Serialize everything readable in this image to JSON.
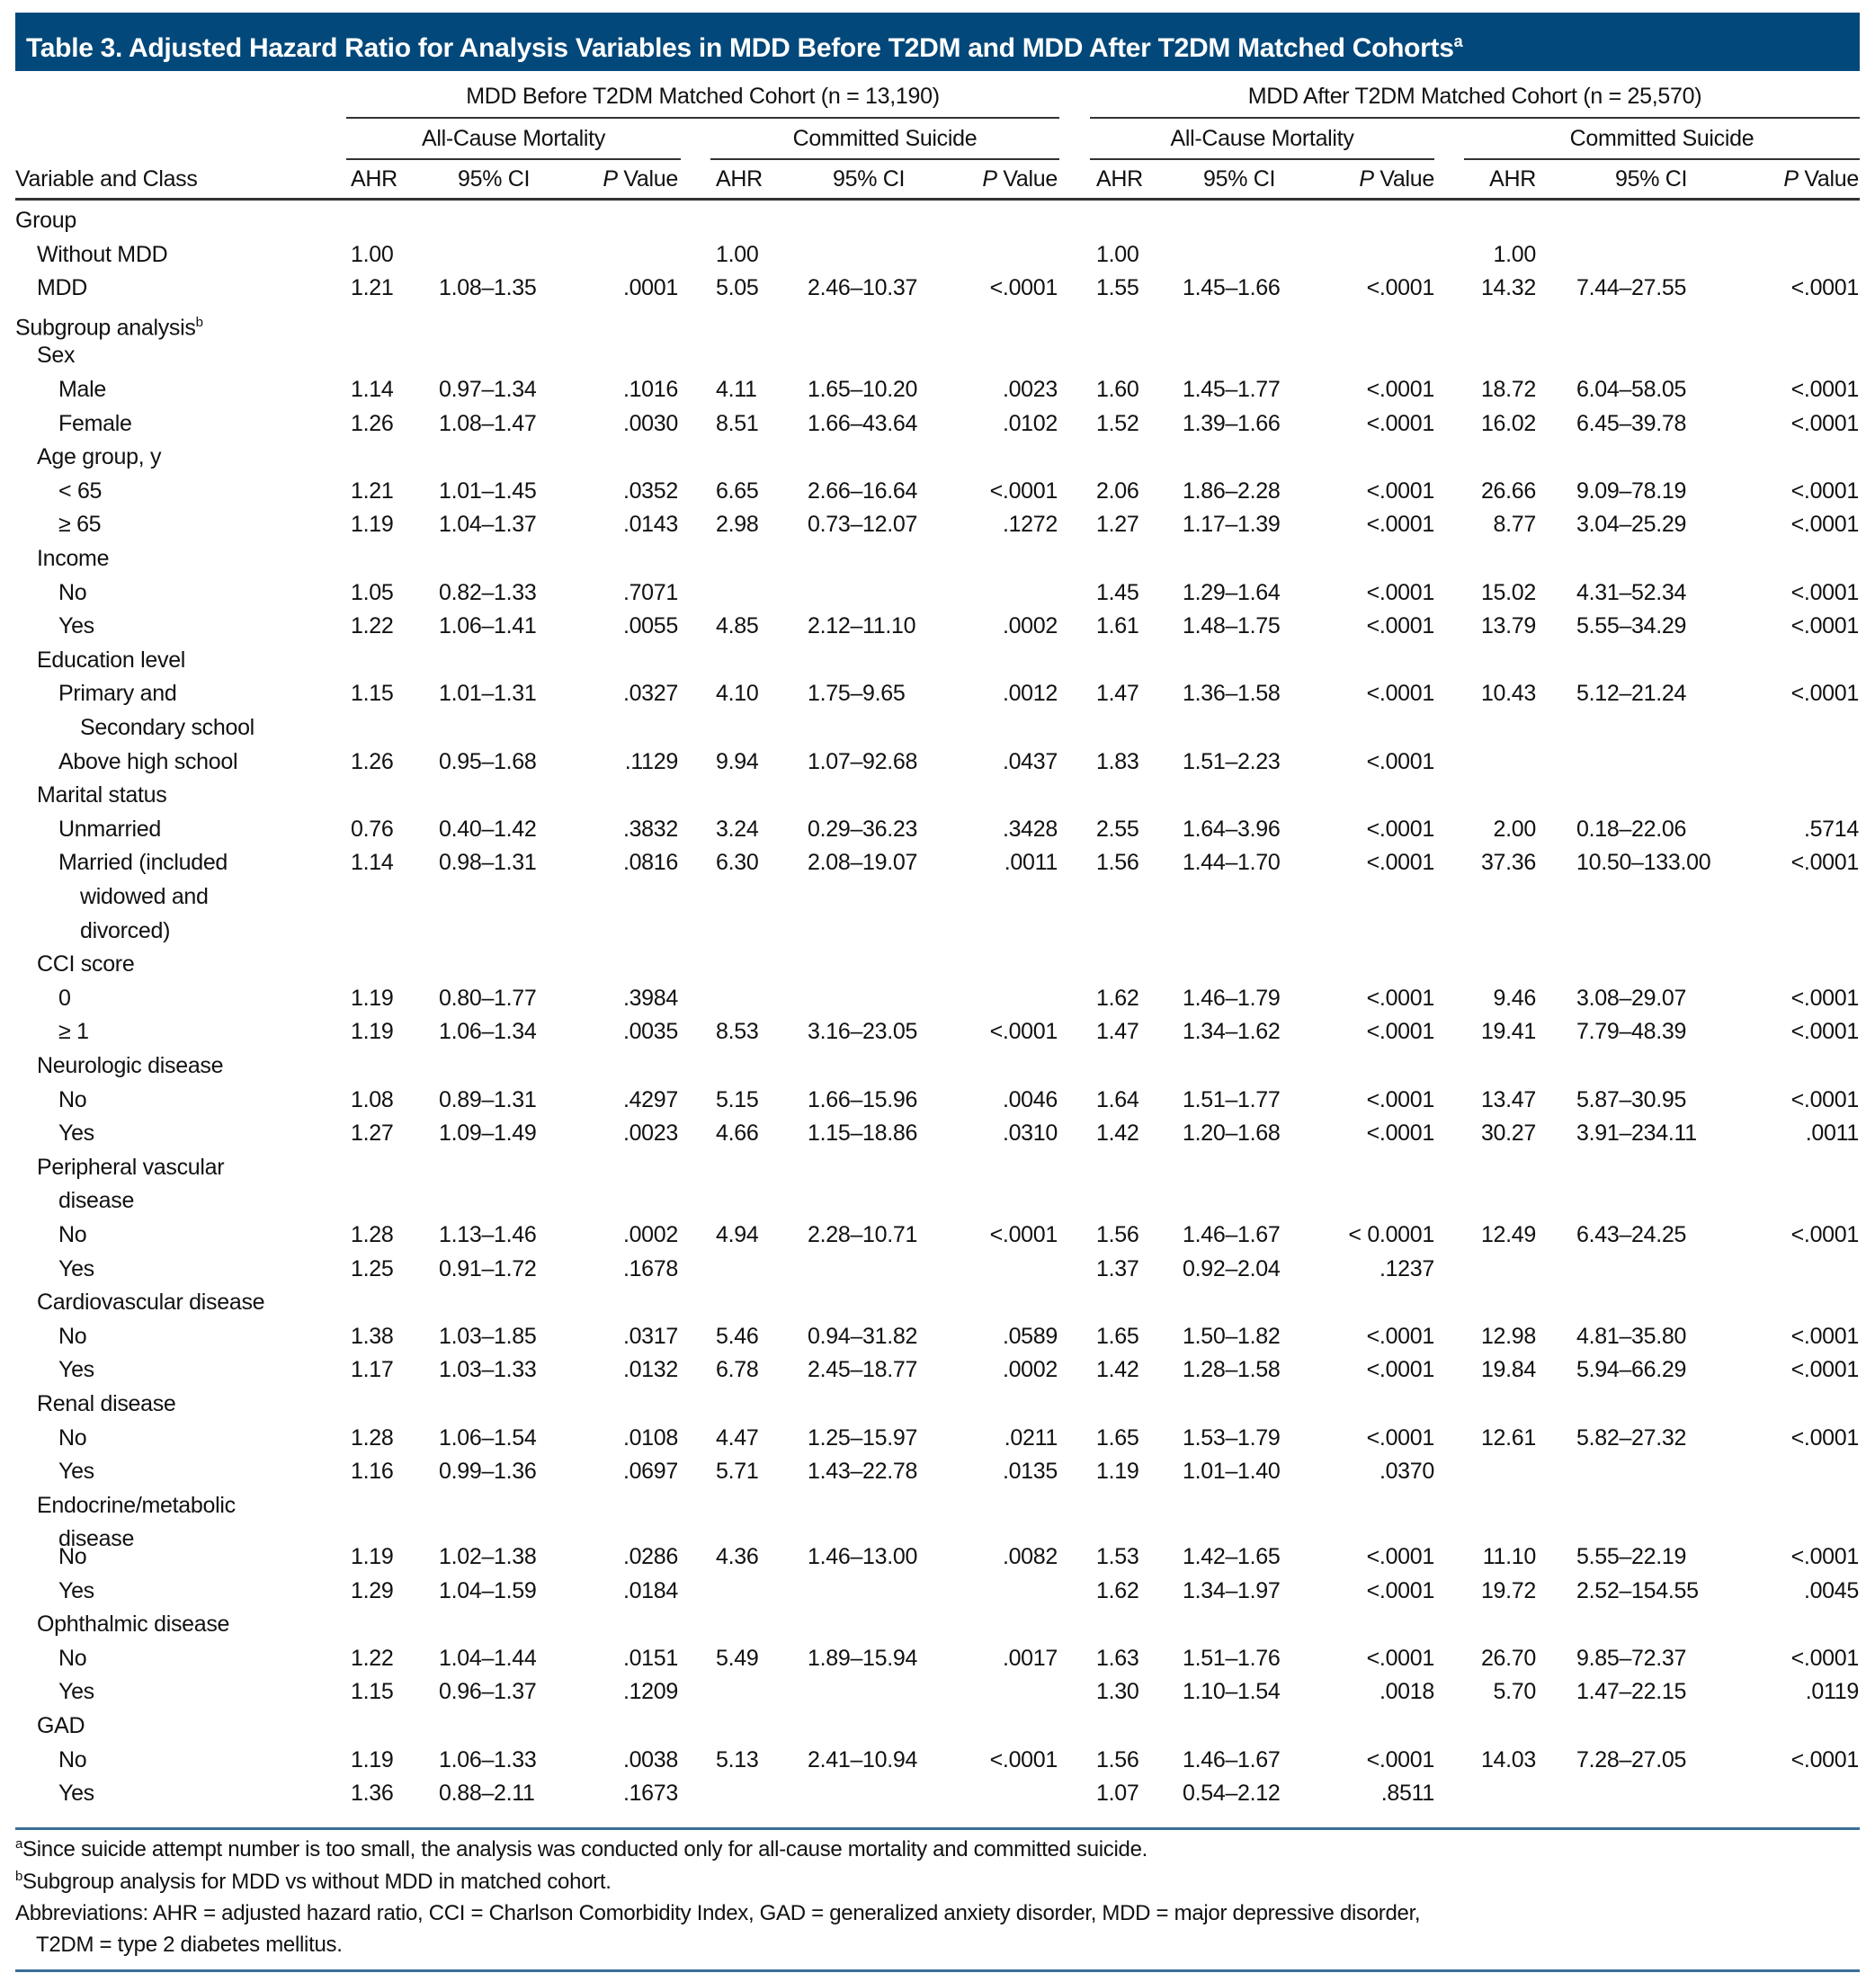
{
  "title": "Table 3. Adjusted Hazard Ratio for Analysis Variables in MDD Before T2DM and MDD After T2DM Matched Cohorts",
  "title_sup": "a",
  "colors": {
    "title_bg": "#02487a",
    "rule": "#3b6e98"
  },
  "header": {
    "cohorts": [
      "MDD Before T2DM Matched Cohort (n = 13,190)",
      "MDD After T2DM Matched Cohort (n = 25,570)"
    ],
    "outcomes": [
      "All-Cause Mortality",
      "Committed Suicide",
      "All-Cause Mortality",
      "Committed Suicide"
    ],
    "variable_label": "Variable and Class",
    "ahr": "AHR",
    "ci": "95% CI",
    "p_italic": "P",
    "p_rest": " Value"
  },
  "rows": [
    {
      "label": [
        "Group"
      ],
      "indent": 0,
      "cells": [
        "",
        "",
        "",
        "",
        "",
        "",
        "",
        "",
        "",
        "",
        "",
        ""
      ]
    },
    {
      "label": [
        "Without MDD"
      ],
      "indent": 1,
      "cells": [
        "1.00",
        "",
        "",
        "1.00",
        "",
        "",
        "1.00",
        "",
        "",
        "1.00",
        "",
        ""
      ]
    },
    {
      "label": [
        "MDD"
      ],
      "indent": 1,
      "cells": [
        "1.21",
        "1.08–1.35",
        ".0001",
        "5.05",
        "2.46–10.37",
        "<.0001",
        "1.55",
        "1.45–1.66",
        "<.0001",
        "14.32",
        "7.44–27.55",
        "<.0001"
      ]
    },
    {
      "label": [
        "Subgroup analysis"
      ],
      "sup": "b",
      "indent": 0,
      "cells": [
        "",
        "",
        "",
        "",
        "",
        "",
        "",
        "",
        "",
        "",
        "",
        ""
      ]
    },
    {
      "label": [
        "Sex"
      ],
      "indent": 1,
      "cells": [
        "",
        "",
        "",
        "",
        "",
        "",
        "",
        "",
        "",
        "",
        "",
        ""
      ]
    },
    {
      "label": [
        "Male"
      ],
      "indent": 2,
      "cells": [
        "1.14",
        "0.97–1.34",
        ".1016",
        "4.11",
        "1.65–10.20",
        ".0023",
        "1.60",
        "1.45–1.77",
        "<.0001",
        "18.72",
        "6.04–58.05",
        "<.0001"
      ]
    },
    {
      "label": [
        "Female"
      ],
      "indent": 2,
      "cells": [
        "1.26",
        "1.08–1.47",
        ".0030",
        "8.51",
        "1.66–43.64",
        ".0102",
        "1.52",
        "1.39–1.66",
        "<.0001",
        "16.02",
        "6.45–39.78",
        "<.0001"
      ]
    },
    {
      "label": [
        "Age group, y"
      ],
      "indent": 1,
      "cells": [
        "",
        "",
        "",
        "",
        "",
        "",
        "",
        "",
        "",
        "",
        "",
        ""
      ]
    },
    {
      "label": [
        "< 65"
      ],
      "indent": 2,
      "cells": [
        "1.21",
        "1.01–1.45",
        ".0352",
        "6.65",
        "2.66–16.64",
        "<.0001",
        "2.06",
        "1.86–2.28",
        "<.0001",
        "26.66",
        "9.09–78.19",
        "<.0001"
      ]
    },
    {
      "label": [
        "≥ 65"
      ],
      "indent": 2,
      "cells": [
        "1.19",
        "1.04–1.37",
        ".0143",
        "2.98",
        "0.73–12.07",
        ".1272",
        "1.27",
        "1.17–1.39",
        "<.0001",
        "8.77",
        "3.04–25.29",
        "<.0001"
      ]
    },
    {
      "label": [
        "Income"
      ],
      "indent": 1,
      "cells": [
        "",
        "",
        "",
        "",
        "",
        "",
        "",
        "",
        "",
        "",
        "",
        ""
      ]
    },
    {
      "label": [
        "No"
      ],
      "indent": 2,
      "cells": [
        "1.05",
        "0.82–1.33",
        ".7071",
        "",
        "",
        "",
        "1.45",
        "1.29–1.64",
        "<.0001",
        "15.02",
        "4.31–52.34",
        "<.0001"
      ]
    },
    {
      "label": [
        "Yes"
      ],
      "indent": 2,
      "cells": [
        "1.22",
        "1.06–1.41",
        ".0055",
        "4.85",
        "2.12–11.10",
        ".0002",
        "1.61",
        "1.48–1.75",
        "<.0001",
        "13.79",
        "5.55–34.29",
        "<.0001"
      ]
    },
    {
      "label": [
        "Education level"
      ],
      "indent": 1,
      "cells": [
        "",
        "",
        "",
        "",
        "",
        "",
        "",
        "",
        "",
        "",
        "",
        ""
      ]
    },
    {
      "label": [
        "Primary and",
        "Secondary school"
      ],
      "indent": 2,
      "cells": [
        "1.15",
        "1.01–1.31",
        ".0327",
        "4.10",
        "1.75–9.65",
        ".0012",
        "1.47",
        "1.36–1.58",
        "<.0001",
        "10.43",
        "5.12–21.24",
        "<.0001"
      ]
    },
    {
      "label": [
        "Above high school"
      ],
      "indent": 2,
      "cells": [
        "1.26",
        "0.95–1.68",
        ".1129",
        "9.94",
        "1.07–92.68",
        ".0437",
        "1.83",
        "1.51–2.23",
        "<.0001",
        "",
        "",
        ""
      ]
    },
    {
      "label": [
        "Marital status"
      ],
      "indent": 1,
      "cells": [
        "",
        "",
        "",
        "",
        "",
        "",
        "",
        "",
        "",
        "",
        "",
        ""
      ]
    },
    {
      "label": [
        "Unmarried"
      ],
      "indent": 2,
      "cells": [
        "0.76",
        "0.40–1.42",
        ".3832",
        "3.24",
        "0.29–36.23",
        ".3428",
        "2.55",
        "1.64–3.96",
        "<.0001",
        "2.00",
        "0.18–22.06",
        ".5714"
      ]
    },
    {
      "label": [
        "Married (included",
        "widowed and",
        "divorced)"
      ],
      "indent": 2,
      "cells": [
        "1.14",
        "0.98–1.31",
        ".0816",
        "6.30",
        "2.08–19.07",
        ".0011",
        "1.56",
        "1.44–1.70",
        "<.0001",
        "37.36",
        "10.50–133.00",
        "<.0001"
      ]
    },
    {
      "label": [
        "CCI score"
      ],
      "indent": 1,
      "cells": [
        "",
        "",
        "",
        "",
        "",
        "",
        "",
        "",
        "",
        "",
        "",
        ""
      ]
    },
    {
      "label": [
        "0"
      ],
      "indent": 2,
      "cells": [
        "1.19",
        "0.80–1.77",
        ".3984",
        "",
        "",
        "",
        "1.62",
        "1.46–1.79",
        "<.0001",
        "9.46",
        "3.08–29.07",
        "<.0001"
      ]
    },
    {
      "label": [
        "≥ 1"
      ],
      "indent": 2,
      "cells": [
        "1.19",
        "1.06–1.34",
        ".0035",
        "8.53",
        "3.16–23.05",
        "<.0001",
        "1.47",
        "1.34–1.62",
        "<.0001",
        "19.41",
        "7.79–48.39",
        "<.0001"
      ]
    },
    {
      "label": [
        "Neurologic disease"
      ],
      "indent": 1,
      "cells": [
        "",
        "",
        "",
        "",
        "",
        "",
        "",
        "",
        "",
        "",
        "",
        ""
      ]
    },
    {
      "label": [
        "No"
      ],
      "indent": 2,
      "cells": [
        "1.08",
        "0.89–1.31",
        ".4297",
        "5.15",
        "1.66–15.96",
        ".0046",
        "1.64",
        "1.51–1.77",
        "<.0001",
        "13.47",
        "5.87–30.95",
        "<.0001"
      ]
    },
    {
      "label": [
        "Yes"
      ],
      "indent": 2,
      "cells": [
        "1.27",
        "1.09–1.49",
        ".0023",
        "4.66",
        "1.15–18.86",
        ".0310",
        "1.42",
        "1.20–1.68",
        "<.0001",
        "30.27",
        "3.91–234.11",
        ".0011"
      ]
    },
    {
      "label": [
        "Peripheral vascular",
        "disease"
      ],
      "indent": 1,
      "cells": [
        "",
        "",
        "",
        "",
        "",
        "",
        "",
        "",
        "",
        "",
        "",
        ""
      ]
    },
    {
      "label": [
        "No"
      ],
      "indent": 2,
      "cells": [
        "1.28",
        "1.13–1.46",
        ".0002",
        "4.94",
        "2.28–10.71",
        "<.0001",
        "1.56",
        "1.46–1.67",
        "< 0.0001",
        "12.49",
        "6.43–24.25",
        "<.0001"
      ]
    },
    {
      "label": [
        "Yes"
      ],
      "indent": 2,
      "cells": [
        "1.25",
        "0.91–1.72",
        ".1678",
        "",
        "",
        "",
        "1.37",
        "0.92–2.04",
        ".1237",
        "",
        "",
        ""
      ]
    },
    {
      "label": [
        "Cardiovascular disease"
      ],
      "indent": 1,
      "cells": [
        "",
        "",
        "",
        "",
        "",
        "",
        "",
        "",
        "",
        "",
        "",
        ""
      ]
    },
    {
      "label": [
        "No"
      ],
      "indent": 2,
      "cells": [
        "1.38",
        "1.03–1.85",
        ".0317",
        "5.46",
        "0.94–31.82",
        ".0589",
        "1.65",
        "1.50–1.82",
        "<.0001",
        "12.98",
        "4.81–35.80",
        "<.0001"
      ]
    },
    {
      "label": [
        "Yes"
      ],
      "indent": 2,
      "cells": [
        "1.17",
        "1.03–1.33",
        ".0132",
        "6.78",
        "2.45–18.77",
        ".0002",
        "1.42",
        "1.28–1.58",
        "<.0001",
        "19.84",
        "5.94–66.29",
        "<.0001"
      ]
    },
    {
      "label": [
        "Renal disease"
      ],
      "indent": 1,
      "cells": [
        "",
        "",
        "",
        "",
        "",
        "",
        "",
        "",
        "",
        "",
        "",
        ""
      ]
    },
    {
      "label": [
        "No"
      ],
      "indent": 2,
      "cells": [
        "1.28",
        "1.06–1.54",
        ".0108",
        "4.47",
        "1.25–15.97",
        ".0211",
        "1.65",
        "1.53–1.79",
        "<.0001",
        "12.61",
        "5.82–27.32",
        "<.0001"
      ]
    },
    {
      "label": [
        "Yes"
      ],
      "indent": 2,
      "cells": [
        "1.16",
        "0.99–1.36",
        ".0697",
        "5.71",
        "1.43–22.78",
        ".0135",
        "1.19",
        "1.01–1.40",
        ".0370",
        "",
        "",
        ""
      ]
    },
    {
      "label": [
        "Endocrine/metabolic",
        "disease"
      ],
      "indent": 1,
      "tight": true,
      "cells": [
        "",
        "",
        "",
        "",
        "",
        "",
        "",
        "",
        "",
        "",
        "",
        ""
      ]
    },
    {
      "label": [
        "No"
      ],
      "indent": 2,
      "cells": [
        "1.19",
        "1.02–1.38",
        ".0286",
        "4.36",
        "1.46–13.00",
        ".0082",
        "1.53",
        "1.42–1.65",
        "<.0001",
        "11.10",
        "5.55–22.19",
        "<.0001"
      ]
    },
    {
      "label": [
        "Yes"
      ],
      "indent": 2,
      "cells": [
        "1.29",
        "1.04–1.59",
        ".0184",
        "",
        "",
        "",
        "1.62",
        "1.34–1.97",
        "<.0001",
        "19.72",
        "2.52–154.55",
        ".0045"
      ]
    },
    {
      "label": [
        "Ophthalmic disease"
      ],
      "indent": 1,
      "cells": [
        "",
        "",
        "",
        "",
        "",
        "",
        "",
        "",
        "",
        "",
        "",
        ""
      ]
    },
    {
      "label": [
        "No"
      ],
      "indent": 2,
      "cells": [
        "1.22",
        "1.04–1.44",
        ".0151",
        "5.49",
        "1.89–15.94",
        ".0017",
        "1.63",
        "1.51–1.76",
        "<.0001",
        "26.70",
        "9.85–72.37",
        "<.0001"
      ]
    },
    {
      "label": [
        "Yes"
      ],
      "indent": 2,
      "cells": [
        "1.15",
        "0.96–1.37",
        ".1209",
        "",
        "",
        "",
        "1.30",
        "1.10–1.54",
        ".0018",
        "5.70",
        "1.47–22.15",
        ".0119"
      ]
    },
    {
      "label": [
        "GAD"
      ],
      "indent": 1,
      "cells": [
        "",
        "",
        "",
        "",
        "",
        "",
        "",
        "",
        "",
        "",
        "",
        ""
      ]
    },
    {
      "label": [
        "No"
      ],
      "indent": 2,
      "cells": [
        "1.19",
        "1.06–1.33",
        ".0038",
        "5.13",
        "2.41–10.94",
        "<.0001",
        "1.56",
        "1.46–1.67",
        "<.0001",
        "14.03",
        "7.28–27.05",
        "<.0001"
      ]
    },
    {
      "label": [
        "Yes"
      ],
      "indent": 2,
      "cells": [
        "1.36",
        "0.88–2.11",
        ".1673",
        "",
        "",
        "",
        "1.07",
        "0.54–2.12",
        ".8511",
        "",
        "",
        ""
      ]
    }
  ],
  "footnotes": {
    "a_mark": "a",
    "a": "Since suicide attempt number is too small, the analysis was conducted only for all-cause mortality and committed suicide.",
    "b_mark": "b",
    "b": "Subgroup analysis for MDD vs without MDD in matched cohort.",
    "abbr1": "Abbreviations: AHR = adjusted hazard ratio, CCI = Charlson Comorbidity Index, GAD = generalized anxiety disorder, MDD = major depressive disorder,",
    "abbr2": "T2DM = type 2 diabetes mellitus."
  }
}
